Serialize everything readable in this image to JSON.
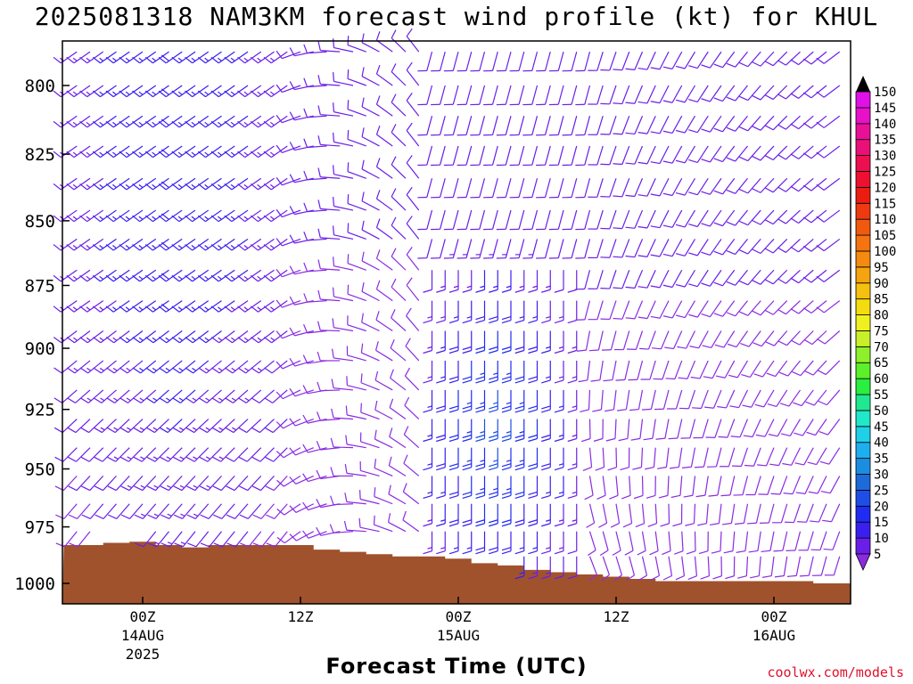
{
  "title": "2025081318 NAM3KM forecast wind profile (kt) for KHUL",
  "credit": "coolwx.com/models",
  "chart_data": {
    "type": "wind-barb-profile",
    "xlabel": "Forecast Time (UTC)",
    "ylabel": "",
    "y_scale": "log-pressure (hPa), inverted",
    "ylim": [
      1010,
      780
    ],
    "xlim_hours_from_14AUG_00Z": [
      -5.5,
      42
    ],
    "y_ticks": [
      800,
      825,
      850,
      875,
      900,
      925,
      950,
      975,
      1000
    ],
    "x_ticks": [
      {
        "hour": 0,
        "label": "00Z",
        "label2": "14AUG",
        "label3": "2025"
      },
      {
        "hour": 12,
        "label": "12Z",
        "label2": "",
        "label3": ""
      },
      {
        "hour": 24,
        "label": "00Z",
        "label2": "15AUG",
        "label3": ""
      },
      {
        "hour": 36,
        "label": "12Z",
        "label2": "",
        "label3": ""
      },
      {
        "hour": 48,
        "label": "00Z",
        "label2": "16AUG",
        "label3": ""
      }
    ],
    "barb_levels_hpa": [
      788,
      800,
      811,
      822,
      834,
      846,
      857,
      869,
      881,
      893,
      905,
      917,
      929,
      941,
      953,
      965,
      977,
      988
    ],
    "barb_times_hours": [
      -5,
      -4,
      -3,
      -2,
      -1,
      0,
      1,
      2,
      3,
      4,
      5,
      6,
      7,
      8,
      9,
      10,
      11,
      12,
      13,
      14,
      15,
      16,
      17,
      18,
      19,
      20,
      21,
      22,
      23,
      24,
      25,
      26,
      27,
      28,
      29,
      30,
      31,
      32,
      33,
      34,
      35,
      36,
      37,
      38,
      39,
      40,
      41,
      42,
      43,
      44,
      45,
      46,
      47,
      48,
      49,
      50,
      51,
      52,
      53
    ],
    "wind_note": "barbs point toward direction wind blows from; full barb = 10 kt, half = 5 kt; color by speed",
    "surface_pressure": {
      "hours": [
        -6,
        -3,
        -1,
        1,
        3,
        5,
        7,
        9,
        11,
        13,
        15,
        17,
        19,
        21,
        23,
        25,
        27,
        29,
        31,
        33,
        35,
        37,
        39,
        41,
        43,
        45,
        47,
        49,
        51,
        53,
        54
      ],
      "hpa": [
        983,
        982,
        981.5,
        983,
        984,
        983,
        983,
        983,
        983,
        985,
        986,
        987,
        988,
        988,
        989,
        991,
        992,
        994,
        995,
        996,
        997,
        998,
        999,
        999,
        999,
        999,
        999,
        999,
        1000,
        1000,
        999
      ]
    },
    "colorbar": {
      "values": [
        5,
        10,
        15,
        20,
        25,
        30,
        35,
        40,
        45,
        50,
        55,
        60,
        65,
        70,
        75,
        80,
        85,
        90,
        95,
        100,
        105,
        110,
        115,
        120,
        125,
        130,
        135,
        140,
        145,
        150
      ],
      "colors": [
        "#8a2be2",
        "#6a1ee8",
        "#3a1ff0",
        "#1f2cf2",
        "#1e4ee8",
        "#1e6ad8",
        "#1c8ee0",
        "#1cb0f0",
        "#1fd0e8",
        "#20e8c8",
        "#20e890",
        "#2aee40",
        "#5cf02a",
        "#8ef02a",
        "#c8f02a",
        "#f0f020",
        "#f5dc10",
        "#f5c010",
        "#f5a310",
        "#f58a10",
        "#f57310",
        "#f05a10",
        "#ee3a10",
        "#ec1d10",
        "#ee1030",
        "#ec1050",
        "#ea1078",
        "#e81098",
        "#e810c8",
        "#e010e8"
      ]
    }
  }
}
